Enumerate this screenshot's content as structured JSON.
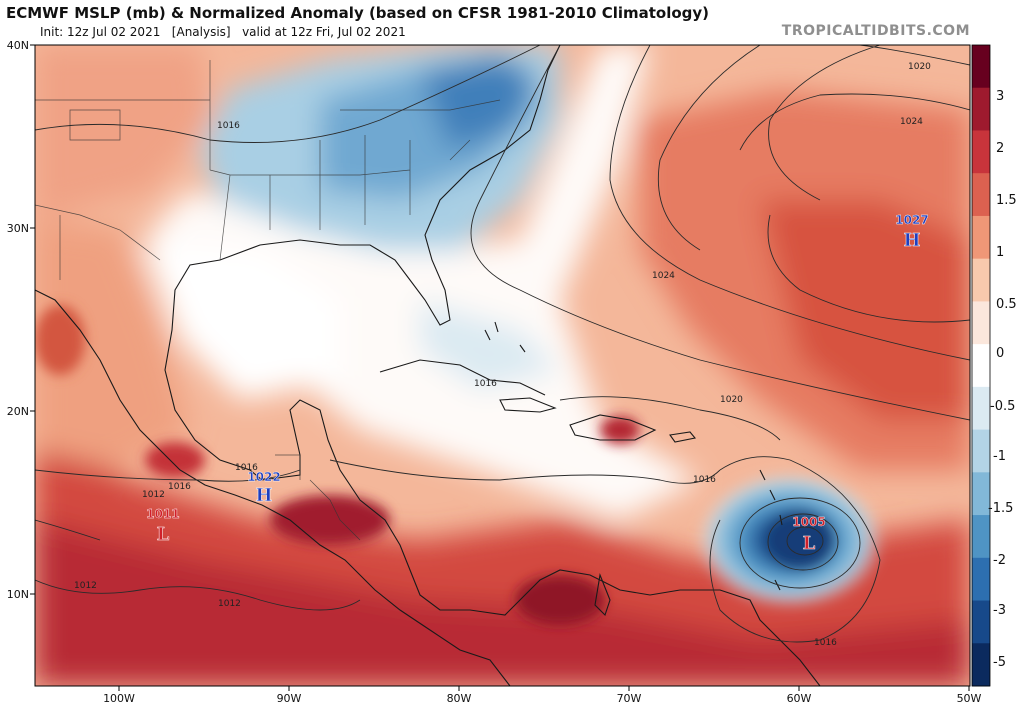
{
  "header": {
    "title": "ECMWF MSLP (mb) & Normalized Anomaly (based on CFSR 1981-2010 Climatology)",
    "init": "Init: 12z Jul 02 2021",
    "analysis": "[Analysis]",
    "valid": "valid at 12z Fri, Jul 02 2021",
    "brand": "TROPICALTIDBITS.COM"
  },
  "axes": {
    "lon_ticks": [
      "100W",
      "90W",
      "80W",
      "70W",
      "60W",
      "50W"
    ],
    "lat_ticks": [
      "40N",
      "30N",
      "20N",
      "10N"
    ]
  },
  "colorbar": {
    "ticks": [
      "3",
      "2",
      "1.5",
      "1",
      "0.5",
      "0",
      "-0.5",
      "-1",
      "-1.5",
      "-2",
      "-3",
      "-5"
    ],
    "colors": [
      "#67001f",
      "#9e1a2e",
      "#c8343b",
      "#dc6150",
      "#ef9777",
      "#f8c9ad",
      "#fbe7dc",
      "#ffffff",
      "#dbeaf2",
      "#b3d4e6",
      "#82b8d8",
      "#4f94c4",
      "#2d6fb0",
      "#17498a",
      "#0b2a5e"
    ]
  },
  "pressure_centers": [
    {
      "type": "H",
      "value": "1027",
      "color": "#1e3fbf"
    },
    {
      "type": "H",
      "value": "1022",
      "color": "#1e3fbf"
    },
    {
      "type": "L",
      "value": "1011",
      "color": "#d0202a"
    },
    {
      "type": "L",
      "value": "1005",
      "color": "#d0202a"
    }
  ],
  "isobar_labels": [
    "1020",
    "1024",
    "1016",
    "1024",
    "1016",
    "1020",
    "1016",
    "1016",
    "1012",
    "1016",
    "1012",
    "1012",
    "1016"
  ],
  "colors": {
    "title": "#111111",
    "brand": "#8f8f8f",
    "high": "#1e3fbf",
    "low": "#d0202a",
    "isobar": "#333333"
  }
}
